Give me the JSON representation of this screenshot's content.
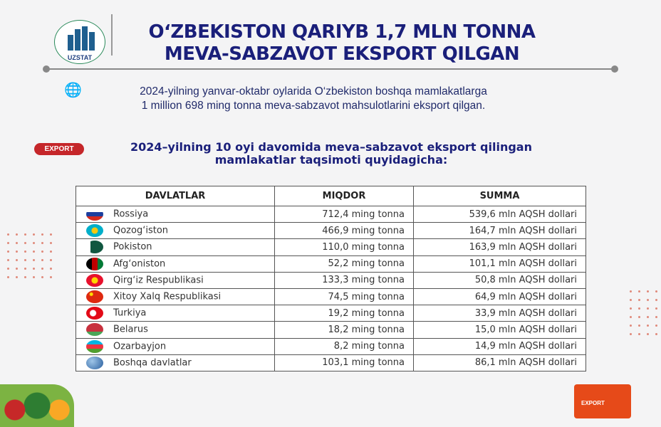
{
  "logo": {
    "brand": "UZSTAT"
  },
  "header": {
    "title_line1": "O‘ZBEKISTON QARIYB 1,7 MLN TONNA",
    "title_line2": "MEVA-SABZAVOT EKSPORT QILGAN"
  },
  "intro": {
    "line1": "2024-yilning yanvar-oktabr oylarida O‘zbekiston boshqa mamlakatlarga",
    "line2": "1 million 698 ming tonna meva-sabzavot mahsulotlarini eksport qilgan."
  },
  "badge": "EXPORT",
  "subtitle": {
    "line1": "2024–yilning 10 oyi davomida meva–sabzavot eksport qilingan",
    "line2": "mamlakatlar taqsimoti quyidagicha:"
  },
  "table": {
    "headers": [
      "DAVLATLAR",
      "MIQDOR",
      "SUMMA"
    ],
    "rows": [
      {
        "country": "Rossiya",
        "amount": "712,4 ming tonna",
        "sum": "539,6 mln AQSH dollari",
        "flag": "russia"
      },
      {
        "country": "Qozog‘iston",
        "amount": "466,9 ming tonna",
        "sum": "164,7 mln AQSH dollari",
        "flag": "kazakhstan"
      },
      {
        "country": "Pokiston",
        "amount": "110,0 ming tonna",
        "sum": "163,9 mln AQSH dollari",
        "flag": "pakistan"
      },
      {
        "country": "Afg‘oniston",
        "amount": "52,2 ming tonna",
        "sum": "101,1 mln AQSH dollari",
        "flag": "afghanistan"
      },
      {
        "country": "Qirg‘iz Respublikasi",
        "amount": "133,3 ming tonna",
        "sum": "50,8 mln AQSH dollari",
        "flag": "kyrgyzstan"
      },
      {
        "country": "Xitoy Xalq Respublikasi",
        "amount": "74,5 ming tonna",
        "sum": "64,9 mln AQSH dollari",
        "flag": "china"
      },
      {
        "country": "Turkiya",
        "amount": "19,2 ming tonna",
        "sum": "33,9 mln AQSH dollari",
        "flag": "turkey"
      },
      {
        "country": "Belarus",
        "amount": "18,2 ming tonna",
        "sum": "15,0 mln AQSH dollari",
        "flag": "belarus"
      },
      {
        "country": "Ozarbayjon",
        "amount": "8,2 ming tonna",
        "sum": "14,9 mln AQSH dollari",
        "flag": "azerbaijan"
      },
      {
        "country": "Boshqa davlatlar",
        "amount": "103,1 ming tonna",
        "sum": "86,1 mln AQSH dollari",
        "flag": "globe"
      }
    ]
  },
  "truck_label": "EXPORT"
}
